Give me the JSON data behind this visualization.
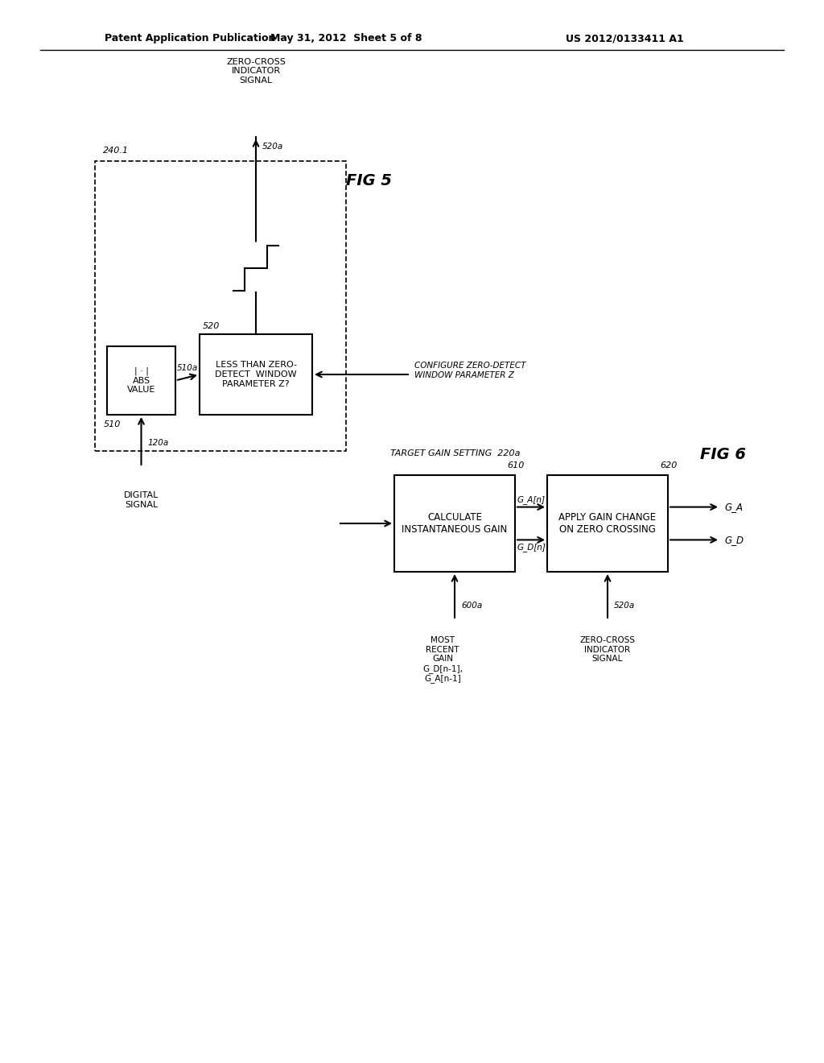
{
  "bg_color": "#ffffff",
  "header_left": "Patent Application Publication",
  "header_center": "May 31, 2012  Sheet 5 of 8",
  "header_right": "US 2012/0133411 A1",
  "fig5_label": "FIG 5",
  "fig6_label": "FIG 6",
  "fig5": {
    "label_240": "240.1",
    "label_510": "510",
    "label_510a": "510a",
    "label_520": "520",
    "label_520a": "520a",
    "configure_text": "CONFIGURE ZERO-DETECT\nWINDOW PARAMETER Z",
    "digital_signal_text": "DIGITAL\nSIGNAL",
    "label_120a": "120a",
    "zero_cross_text": "ZERO-CROSS\nINDICATOR\nSIGNAL",
    "abs_label": "| · |\nABS\nVALUE",
    "cmp_label": "LESS THAN ZERO-\nDETECT  WINDOW\nPARAMETER Z?"
  },
  "fig6": {
    "tgs_label": "TARGET GAIN SETTING  220a",
    "calc_label": "CALCULATE\nINSTANTANEOUS GAIN",
    "apply_label": "APPLY GAIN CHANGE\nON ZERO CROSSING",
    "label_610": "610",
    "label_620": "620",
    "label_600a": "600a",
    "most_recent_text": "MOST\nRECENT\nGAIN\nG_D[n-1],\nG_A[n-1]",
    "zero_cross_text2": "ZERO-CROSS\nINDICATOR\nSIGNAL",
    "label_520a_fig6": "520a",
    "ga_n_label": "G_A[n]",
    "gd_n_label": "G_D[n]",
    "ga_label": "G_A",
    "gd_label": "G_D"
  }
}
